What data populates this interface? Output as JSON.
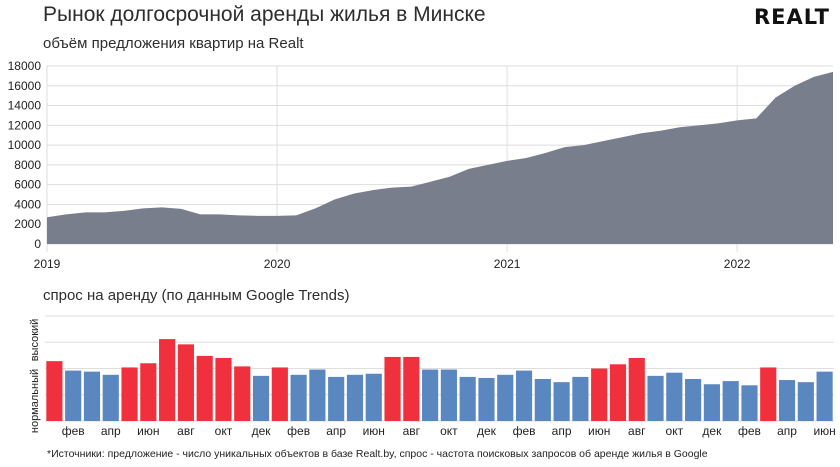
{
  "header": {
    "title": "Рынок долгосрочной аренды жилья в Минске",
    "logo_text": "REALT"
  },
  "colors": {
    "area_fill": "#787e8b",
    "bar_red": "#f0303c",
    "bar_blue": "#5b87c1",
    "grid": "#dedede"
  },
  "chart_data": [
    {
      "type": "area",
      "title": "объём предложения квартир на Realt",
      "x_start": "2019-01",
      "x_labels": [
        "2019",
        "2020",
        "2021",
        "2022"
      ],
      "ylim": [
        0,
        18000
      ],
      "y_ticks": [
        0,
        2000,
        4000,
        6000,
        8000,
        10000,
        12000,
        14000,
        16000,
        18000
      ],
      "grid": true,
      "values": [
        2700,
        3000,
        3200,
        3200,
        3350,
        3600,
        3700,
        3550,
        3000,
        3000,
        2900,
        2850,
        2850,
        2900,
        3600,
        4500,
        5100,
        5450,
        5700,
        5800,
        6300,
        6800,
        7600,
        8000,
        8400,
        8700,
        9200,
        9800,
        10000,
        10400,
        10800,
        11200,
        11450,
        11800,
        12000,
        12200,
        12500,
        12700,
        14800,
        16000,
        16900,
        17400
      ]
    },
    {
      "type": "bar",
      "title": "спрос на аренду (по данным Google Trends)",
      "y_axis_labels": {
        "low": "нормальный",
        "high": "высокий"
      },
      "x_tick_labels": [
        "фев",
        "апр",
        "июн",
        "авг",
        "окт",
        "дек",
        "фев",
        "апр",
        "июн",
        "авг",
        "окт",
        "дек",
        "фев",
        "апр",
        "июн",
        "авг",
        "окт",
        "дек",
        "фев",
        "апр",
        "июн"
      ],
      "ylim": [
        0,
        100
      ],
      "values": [
        57,
        48,
        47,
        44,
        51,
        55,
        78,
        73,
        62,
        60,
        52,
        43,
        51,
        44,
        49,
        42,
        44,
        45,
        61,
        61,
        49,
        49,
        42,
        41,
        44,
        48,
        40,
        37,
        42,
        50,
        54,
        60,
        43,
        46,
        40,
        35,
        38,
        34,
        51,
        39,
        37,
        47
      ],
      "high_demand": [
        true,
        false,
        false,
        false,
        true,
        true,
        true,
        true,
        true,
        true,
        true,
        false,
        true,
        false,
        false,
        false,
        false,
        false,
        true,
        true,
        false,
        false,
        false,
        false,
        false,
        false,
        false,
        false,
        false,
        true,
        true,
        true,
        false,
        false,
        false,
        false,
        false,
        false,
        true,
        false,
        false,
        false
      ]
    }
  ],
  "footnote": "*Источники: предложение - число уникальных объектов в базе Realt.by, спрос - частота поисковых запросов об аренде жилья в Google"
}
